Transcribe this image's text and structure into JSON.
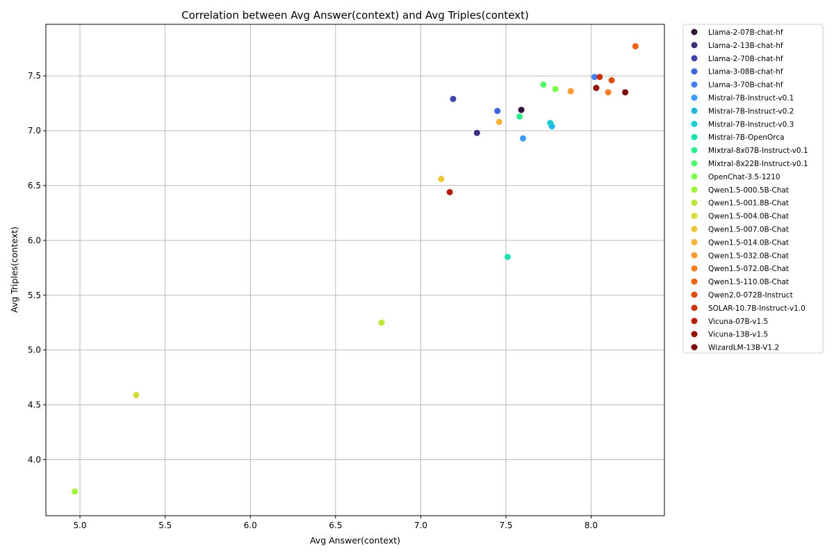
{
  "chart_data": {
    "type": "scatter",
    "title": "Correlation between Avg Answer(context) and Avg Triples(context)",
    "xlabel": "Avg Answer(context)",
    "ylabel": "Avg Triples(context)",
    "xlim": [
      4.8,
      8.43
    ],
    "ylim": [
      3.49,
      7.97
    ],
    "xticks": [
      "5.0",
      "5.5",
      "6.0",
      "6.5",
      "7.0",
      "7.5",
      "8.0"
    ],
    "yticks": [
      "4.0",
      "4.5",
      "5.0",
      "5.5",
      "6.0",
      "6.5",
      "7.0",
      "7.5"
    ],
    "grid": true,
    "legend_position": "outside-right",
    "series": [
      {
        "name": "Llama-2-07B-chat-hf",
        "color": "#30123b",
        "x": 7.59,
        "y": 7.19
      },
      {
        "name": "Llama-2-13B-chat-hf",
        "color": "#3e2f7c",
        "x": 7.33,
        "y": 6.98
      },
      {
        "name": "Llama-2-70B-chat-hf",
        "color": "#4145ab",
        "x": 7.19,
        "y": 7.29
      },
      {
        "name": "Llama-3-08B-chat-hf",
        "color": "#4163db",
        "x": 7.45,
        "y": 7.18
      },
      {
        "name": "Llama-3-70B-chat-hf",
        "color": "#4680f6",
        "x": 8.02,
        "y": 7.49
      },
      {
        "name": "Mistral-7B-Instruct-v0.1",
        "color": "#3a9bf8",
        "x": 7.6,
        "y": 6.93
      },
      {
        "name": "Mistral-7B-Instruct-v0.2",
        "color": "#25b6e7",
        "x": 7.77,
        "y": 7.04
      },
      {
        "name": "Mistral-7B-Instruct-v0.3",
        "color": "#18cdcd",
        "x": 7.76,
        "y": 7.07
      },
      {
        "name": "Mistral-7B-OpenOrca",
        "color": "#1de0b0",
        "x": 7.51,
        "y": 5.85
      },
      {
        "name": "Mixtral-8x07B-Instruct-v0.1",
        "color": "#30ed90",
        "x": 7.58,
        "y": 7.13
      },
      {
        "name": "Mixtral-8x22B-Instruct-v0.1",
        "color": "#52f76c",
        "x": 7.72,
        "y": 7.42
      },
      {
        "name": "OpenChat-3.5-1210",
        "color": "#7dfe4f",
        "x": 7.79,
        "y": 7.38
      },
      {
        "name": "Qwen1.5-000.5B-Chat",
        "color": "#a0f43a",
        "x": 4.97,
        "y": 3.71
      },
      {
        "name": "Qwen1.5-001.8B-Chat",
        "color": "#bae838",
        "x": 6.77,
        "y": 5.25
      },
      {
        "name": "Qwen1.5-004.0B-Chat",
        "color": "#d6dd38",
        "x": 5.33,
        "y": 4.59
      },
      {
        "name": "Qwen1.5-007.0B-Chat",
        "color": "#ebc63a",
        "x": 7.12,
        "y": 6.56
      },
      {
        "name": "Qwen1.5-014.0B-Chat",
        "color": "#f9b437",
        "x": 7.46,
        "y": 7.08
      },
      {
        "name": "Qwen1.5-032.0B-Chat",
        "color": "#fd9a2f",
        "x": 7.88,
        "y": 7.36
      },
      {
        "name": "Qwen1.5-072.0B-Chat",
        "color": "#f97d23",
        "x": 8.1,
        "y": 7.35
      },
      {
        "name": "Qwen1.5-110.0B-Chat",
        "color": "#ec6217",
        "x": 8.26,
        "y": 7.77
      },
      {
        "name": "Qwen2.0-072B-Instruct",
        "color": "#de4a0e",
        "x": 8.12,
        "y": 7.46
      },
      {
        "name": "SOLAR-10.7B-Instruct-v1.0",
        "color": "#cc3108",
        "x": 8.05,
        "y": 7.49
      },
      {
        "name": "Vicuna-07B-v1.5",
        "color": "#b21f04",
        "x": 7.17,
        "y": 6.44
      },
      {
        "name": "Vicuna-13B-v1.5",
        "color": "#940f03",
        "x": 8.03,
        "y": 7.39
      },
      {
        "name": "WizardLM-13B-V1.2",
        "color": "#7a0403",
        "x": 8.2,
        "y": 7.35
      }
    ]
  }
}
